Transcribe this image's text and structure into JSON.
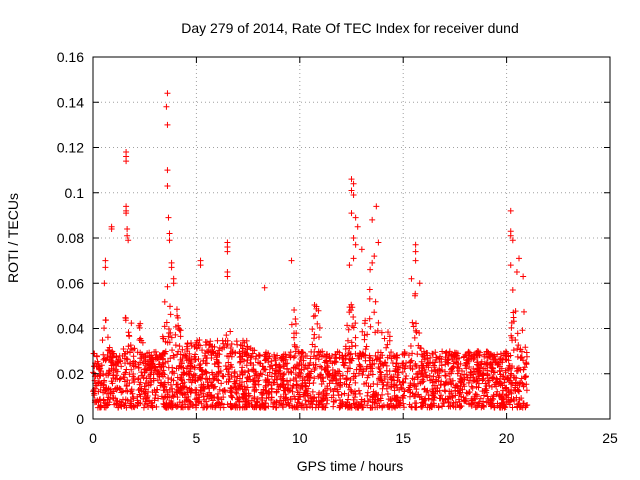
{
  "chart_data": {
    "type": "scatter",
    "title": "Day 279 of 2014, Rate Of TEC Index for receiver dund",
    "xlabel": "GPS time / hours",
    "ylabel": "ROTI / TECUs",
    "xlim": [
      0,
      25
    ],
    "ylim": [
      0,
      0.16
    ],
    "xticks": [
      0,
      5,
      10,
      15,
      20,
      25
    ],
    "yticks": [
      0,
      0.02,
      0.04,
      0.06,
      0.08,
      0.1,
      0.12,
      0.14,
      0.16
    ],
    "xtick_labels": [
      "0",
      "5",
      "10",
      "15",
      "20",
      "25"
    ],
    "ytick_labels": [
      "0",
      "0.02",
      "0.04",
      "0.06",
      "0.08",
      "0.1",
      "0.12",
      "0.14",
      "0.16"
    ],
    "grid": true,
    "marker": "+",
    "color": "#ff0000",
    "time_range_hours": [
      0,
      21
    ],
    "baseline_range": [
      0.005,
      0.03
    ],
    "outliers": [
      {
        "x": 0.6,
        "y": 0.07
      },
      {
        "x": 0.6,
        "y": 0.067
      },
      {
        "x": 0.55,
        "y": 0.06
      },
      {
        "x": 0.9,
        "y": 0.085
      },
      {
        "x": 0.9,
        "y": 0.084
      },
      {
        "x": 1.6,
        "y": 0.118
      },
      {
        "x": 1.6,
        "y": 0.116
      },
      {
        "x": 1.6,
        "y": 0.114
      },
      {
        "x": 1.6,
        "y": 0.094
      },
      {
        "x": 1.6,
        "y": 0.092
      },
      {
        "x": 1.6,
        "y": 0.091
      },
      {
        "x": 1.65,
        "y": 0.084
      },
      {
        "x": 1.65,
        "y": 0.081
      },
      {
        "x": 1.7,
        "y": 0.079
      },
      {
        "x": 3.6,
        "y": 0.144
      },
      {
        "x": 3.55,
        "y": 0.138
      },
      {
        "x": 3.6,
        "y": 0.13
      },
      {
        "x": 3.6,
        "y": 0.11
      },
      {
        "x": 3.6,
        "y": 0.103
      },
      {
        "x": 3.65,
        "y": 0.089
      },
      {
        "x": 3.7,
        "y": 0.082
      },
      {
        "x": 3.7,
        "y": 0.079
      },
      {
        "x": 3.8,
        "y": 0.069
      },
      {
        "x": 3.8,
        "y": 0.067
      },
      {
        "x": 3.9,
        "y": 0.062
      },
      {
        "x": 3.9,
        "y": 0.06
      },
      {
        "x": 5.2,
        "y": 0.07
      },
      {
        "x": 5.2,
        "y": 0.068
      },
      {
        "x": 6.5,
        "y": 0.078
      },
      {
        "x": 6.5,
        "y": 0.076
      },
      {
        "x": 6.5,
        "y": 0.074
      },
      {
        "x": 6.5,
        "y": 0.065
      },
      {
        "x": 6.5,
        "y": 0.063
      },
      {
        "x": 9.6,
        "y": 0.07
      },
      {
        "x": 8.3,
        "y": 0.058
      },
      {
        "x": 12.5,
        "y": 0.106
      },
      {
        "x": 12.6,
        "y": 0.104
      },
      {
        "x": 12.5,
        "y": 0.101
      },
      {
        "x": 12.6,
        "y": 0.099
      },
      {
        "x": 12.5,
        "y": 0.091
      },
      {
        "x": 12.7,
        "y": 0.089
      },
      {
        "x": 12.6,
        "y": 0.08
      },
      {
        "x": 12.7,
        "y": 0.077
      },
      {
        "x": 12.8,
        "y": 0.085
      },
      {
        "x": 13.0,
        "y": 0.075
      },
      {
        "x": 12.6,
        "y": 0.071
      },
      {
        "x": 12.4,
        "y": 0.068
      },
      {
        "x": 13.5,
        "y": 0.088
      },
      {
        "x": 13.7,
        "y": 0.094
      },
      {
        "x": 13.8,
        "y": 0.078
      },
      {
        "x": 13.6,
        "y": 0.072
      },
      {
        "x": 13.5,
        "y": 0.069
      },
      {
        "x": 13.4,
        "y": 0.066
      },
      {
        "x": 15.6,
        "y": 0.077
      },
      {
        "x": 15.6,
        "y": 0.074
      },
      {
        "x": 15.6,
        "y": 0.07
      },
      {
        "x": 15.4,
        "y": 0.062
      },
      {
        "x": 15.8,
        "y": 0.06
      },
      {
        "x": 20.2,
        "y": 0.092
      },
      {
        "x": 20.2,
        "y": 0.083
      },
      {
        "x": 20.2,
        "y": 0.081
      },
      {
        "x": 20.3,
        "y": 0.079
      },
      {
        "x": 20.2,
        "y": 0.068
      },
      {
        "x": 20.6,
        "y": 0.071
      },
      {
        "x": 20.5,
        "y": 0.065
      },
      {
        "x": 20.8,
        "y": 0.063
      },
      {
        "x": 20.3,
        "y": 0.057
      }
    ]
  }
}
